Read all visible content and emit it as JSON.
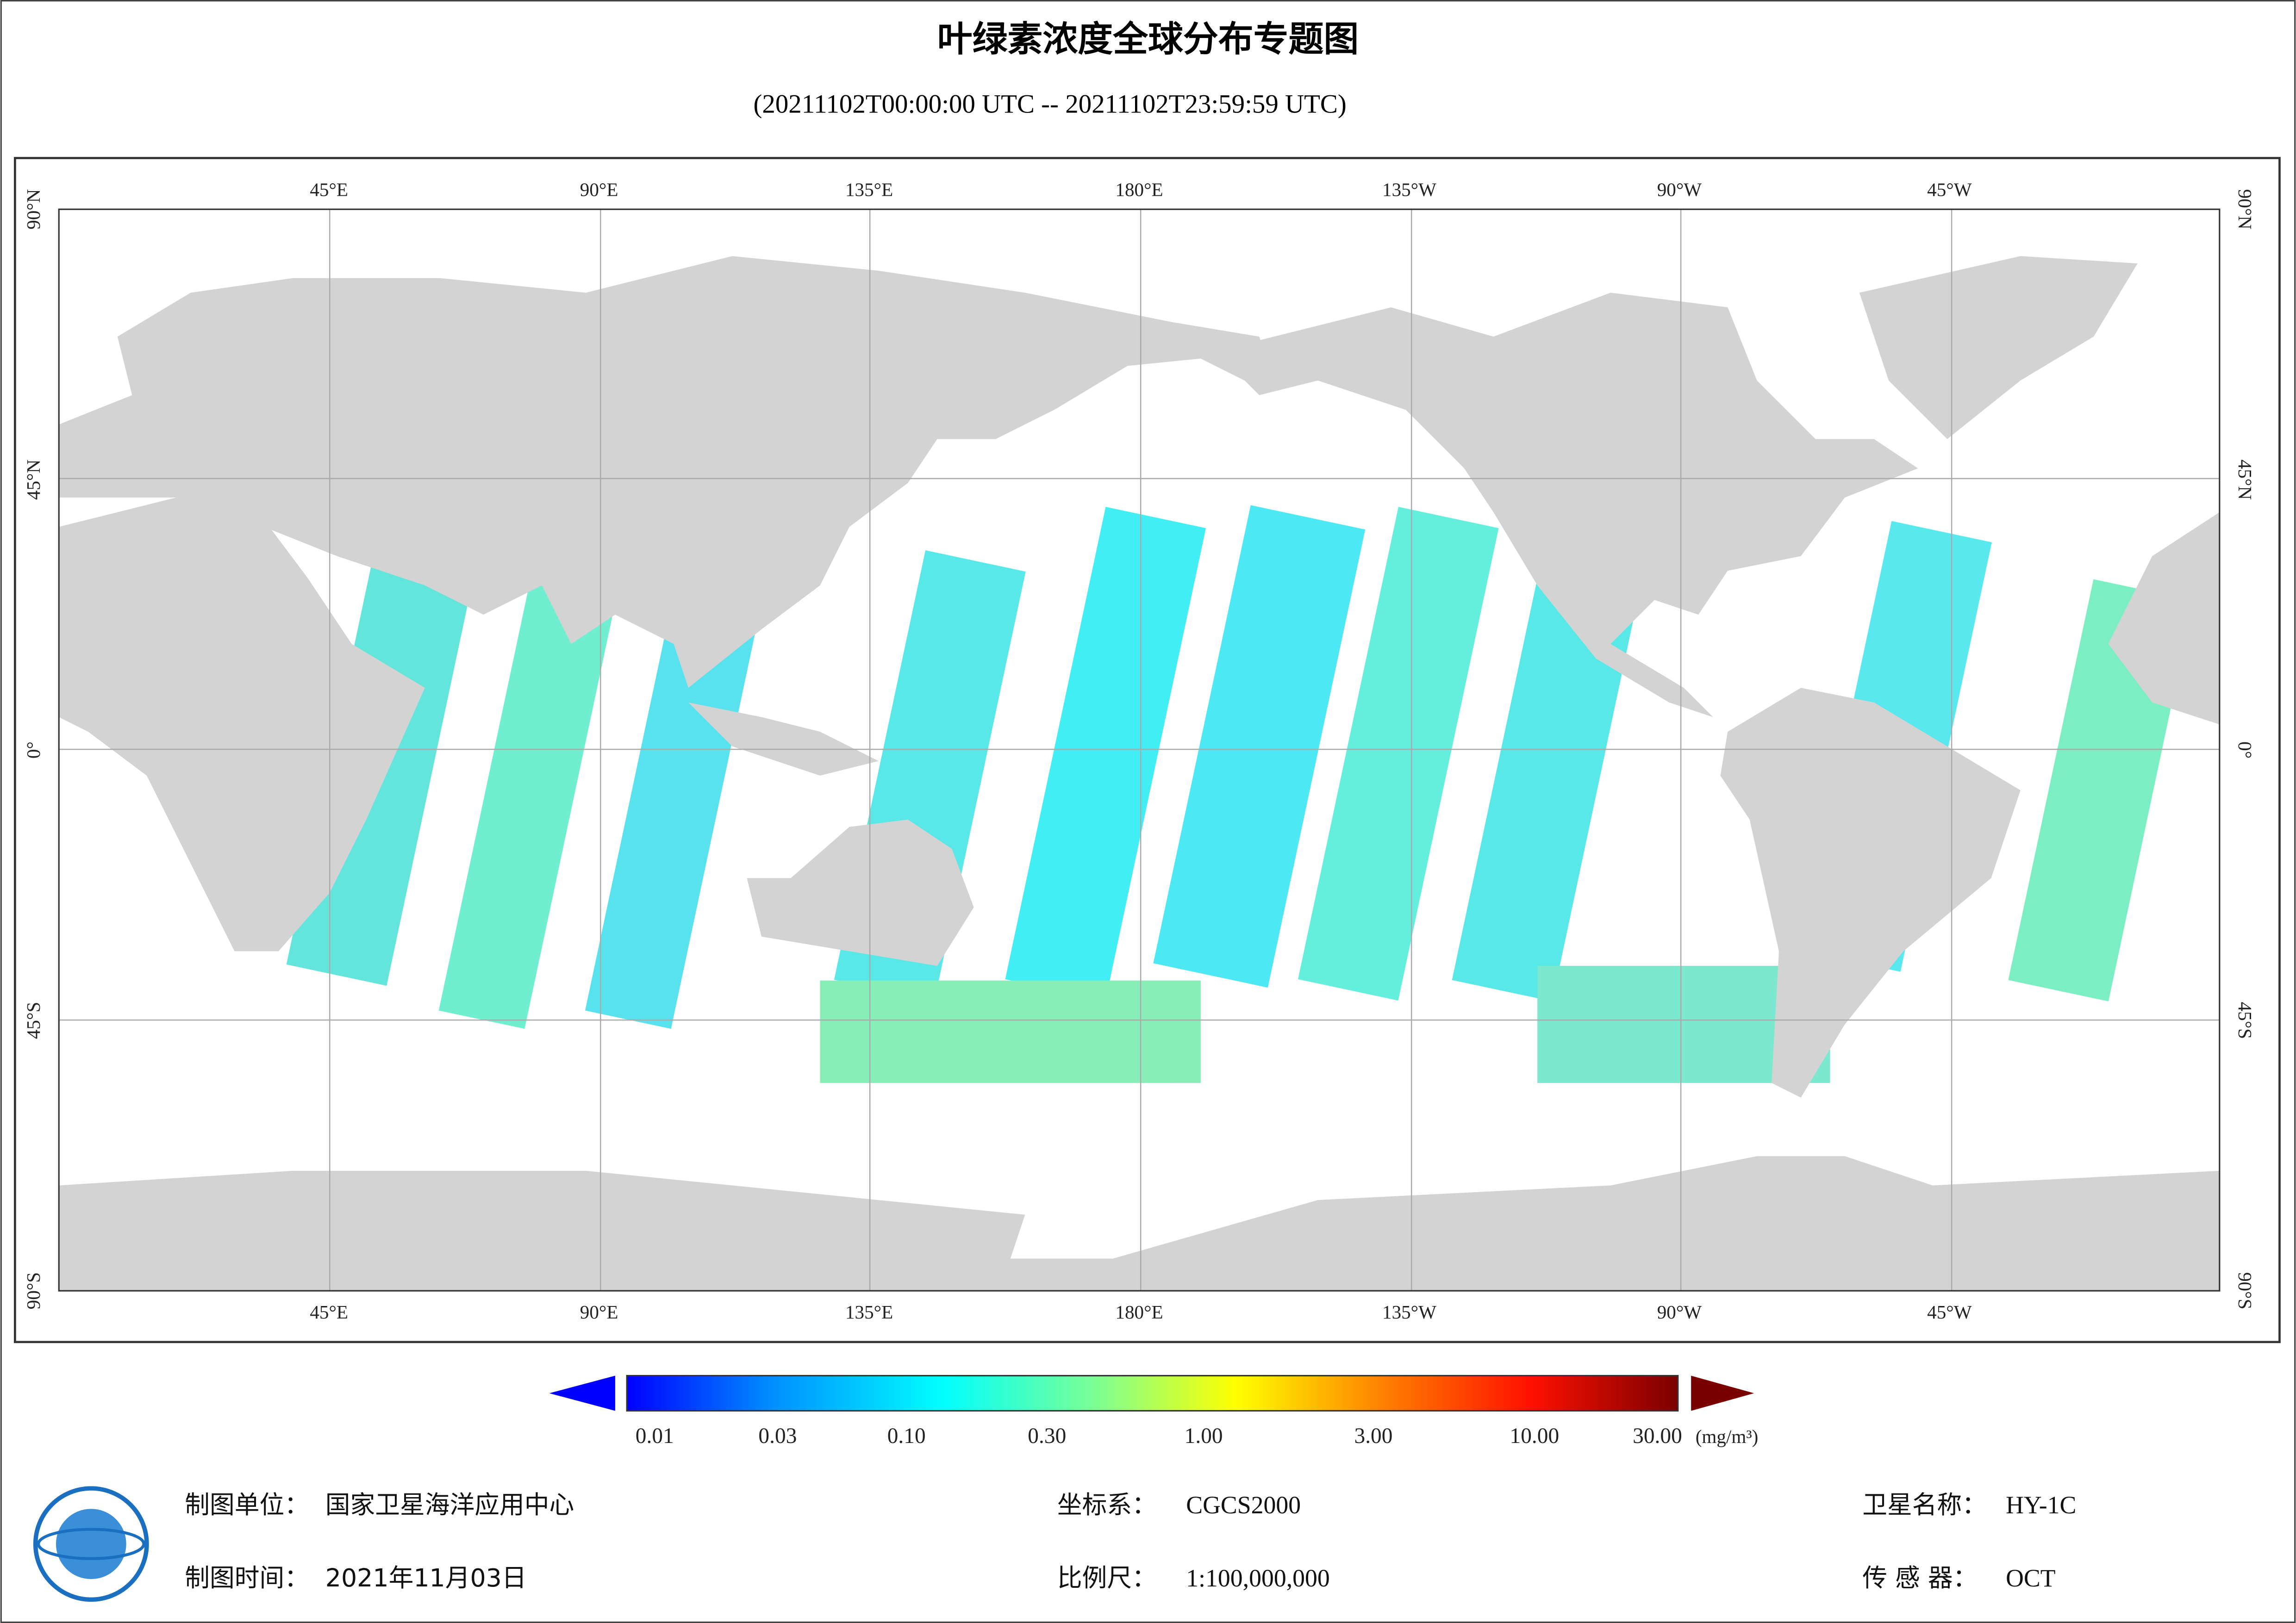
{
  "header": {
    "title": "叶绿素浓度全球分布专题图",
    "subtitle": "(20211102T00:00:00 UTC -- 20211102T23:59:59 UTC)"
  },
  "map": {
    "lon_labels": [
      "45°E",
      "90°E",
      "135°E",
      "180°E",
      "135°W",
      "90°W",
      "45°W"
    ],
    "lat_labels": [
      "90°N",
      "45°N",
      "0°",
      "45°S",
      "90°S"
    ]
  },
  "colorbar": {
    "labels": [
      "0.01",
      "0.03",
      "0.10",
      "0.30",
      "1.00",
      "3.00",
      "10.00",
      "30.00"
    ],
    "unit": "(mg/m³)"
  },
  "footer": {
    "org_label": "制图单位：",
    "org": "国家卫星海洋应用中心",
    "date_label": "制图时间：",
    "date": "2021年11月03日",
    "crs_label": "坐标系：",
    "crs": "CGCS2000",
    "scale_label": "比例尺：",
    "scale": "1:100,000,000",
    "sat_label": "卫星名称：",
    "sat": "HY-1C",
    "sensor_label": "传 感 器：",
    "sensor": "OCT"
  }
}
